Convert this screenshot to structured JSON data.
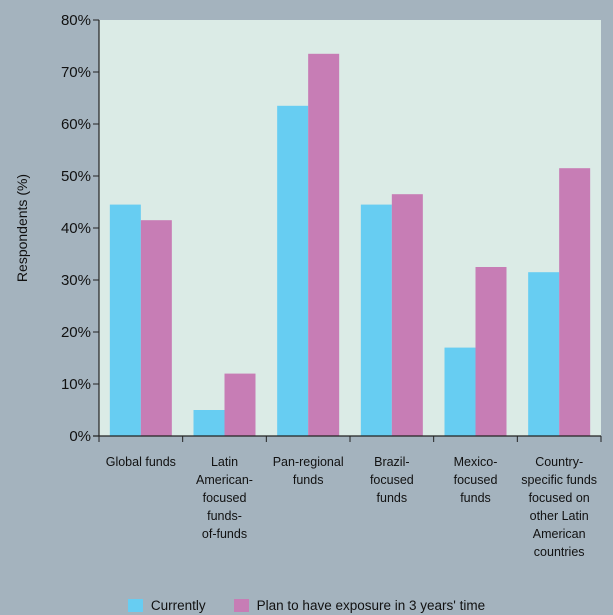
{
  "chart_data": {
    "type": "bar",
    "categories": [
      [
        "Global funds"
      ],
      [
        "Latin",
        "American-",
        "focused",
        "funds-",
        "of-funds"
      ],
      [
        "Pan-regional",
        "funds"
      ],
      [
        "Brazil-",
        "focused",
        "funds"
      ],
      [
        "Mexico-",
        "focused",
        "funds"
      ],
      [
        "Country-",
        "specific funds",
        "focused on",
        "other Latin",
        "American",
        "countries"
      ]
    ],
    "series": [
      {
        "name": "Currently",
        "color": "#67cdf2",
        "values": [
          44.5,
          5,
          63.5,
          44.5,
          17,
          31.5
        ]
      },
      {
        "name": "Plan to have exposure in 3 years' time",
        "color": "#c77db5",
        "values": [
          41.5,
          12,
          73.5,
          46.5,
          32.5,
          51.5
        ]
      }
    ],
    "ylabel": "Respondents (%)",
    "ylim": [
      0,
      80
    ],
    "yticks": [
      "0%",
      "10%",
      "20%",
      "30%",
      "40%",
      "50%",
      "60%",
      "70%",
      "80%"
    ],
    "grid": false,
    "plot_background": "#dbebe6",
    "legend_position": "bottom"
  }
}
